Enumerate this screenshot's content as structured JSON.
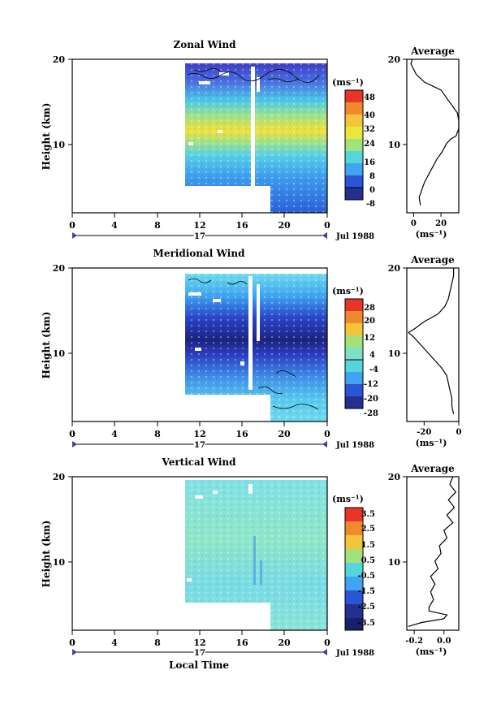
{
  "chart_data": [
    {
      "type": "heatmap",
      "title": "Zonal Wind",
      "ylabel": "Height (km)",
      "ylim": [
        0,
        20
      ],
      "yticks": [
        10,
        20
      ],
      "xticks": [
        "0",
        "4",
        "8",
        "12",
        "16",
        "20",
        "0"
      ],
      "date_marker": "17",
      "date_label": "Jul 1988",
      "colorbar": {
        "unit": "(ms⁻¹)",
        "ticks": [
          -8,
          0,
          8,
          16,
          24,
          32,
          40,
          48
        ]
      },
      "average_profile": {
        "title": "Average",
        "xlabel": "(ms⁻¹)",
        "xticks": [
          0,
          20
        ],
        "xlim": [
          -5,
          33
        ],
        "ylim": [
          0,
          20
        ],
        "yticks": [
          10,
          20
        ],
        "points": [
          [
            5,
            1
          ],
          [
            4,
            2
          ],
          [
            6,
            3
          ],
          [
            8,
            4
          ],
          [
            11,
            5
          ],
          [
            14,
            6
          ],
          [
            17,
            7
          ],
          [
            21,
            8
          ],
          [
            24,
            9
          ],
          [
            27,
            9.6
          ],
          [
            31,
            10
          ],
          [
            33,
            11
          ],
          [
            33,
            12
          ],
          [
            32,
            13
          ],
          [
            28,
            14
          ],
          [
            24,
            15
          ],
          [
            20,
            16
          ],
          [
            14,
            16.5
          ],
          [
            8,
            17
          ],
          [
            2,
            18
          ],
          [
            0,
            18.7
          ],
          [
            -2,
            19.4
          ],
          [
            -1,
            20
          ]
        ]
      }
    },
    {
      "type": "heatmap",
      "title": "Meridional Wind",
      "ylabel": "Height (km)",
      "ylim": [
        0,
        20
      ],
      "yticks": [
        10,
        20
      ],
      "xticks": [
        "0",
        "4",
        "8",
        "12",
        "16",
        "20",
        "0"
      ],
      "date_marker": "17",
      "date_label": "Jul 1988",
      "colorbar": {
        "unit": "(ms⁻¹)",
        "ticks": [
          -28,
          -20,
          -12,
          -4,
          4,
          12,
          20,
          28
        ]
      },
      "average_profile": {
        "title": "Average",
        "xlabel": "(ms⁻¹)",
        "xticks": [
          -20,
          0
        ],
        "xlim": [
          -30,
          0
        ],
        "ylim": [
          0,
          20
        ],
        "yticks": [
          10,
          20
        ],
        "points": [
          [
            -3,
            1
          ],
          [
            -4,
            2
          ],
          [
            -4,
            3
          ],
          [
            -5,
            4
          ],
          [
            -6,
            5
          ],
          [
            -7,
            6
          ],
          [
            -10,
            7
          ],
          [
            -14,
            8
          ],
          [
            -18,
            9
          ],
          [
            -22,
            10
          ],
          [
            -26,
            11
          ],
          [
            -29,
            11.6
          ],
          [
            -26,
            12
          ],
          [
            -20,
            13
          ],
          [
            -12,
            14
          ],
          [
            -8,
            15
          ],
          [
            -6,
            16
          ],
          [
            -5,
            17
          ],
          [
            -4,
            18
          ],
          [
            -3,
            19
          ],
          [
            -3,
            20
          ]
        ]
      }
    },
    {
      "type": "heatmap",
      "title": "Vertical Wind",
      "ylabel": "Height (km)",
      "ylim": [
        0,
        20
      ],
      "yticks": [
        10,
        20
      ],
      "xticks": [
        "0",
        "4",
        "8",
        "12",
        "16",
        "20",
        "0"
      ],
      "date_marker": "17",
      "date_label": "Jul 1988",
      "xlabel": "Local Time",
      "colorbar": {
        "unit": "(ms⁻¹)",
        "ticks": [
          -3.5,
          -2.5,
          -1.5,
          -0.5,
          0.5,
          1.5,
          2.5,
          3.5
        ]
      },
      "average_profile": {
        "title": "Average",
        "xlabel": "(ms⁻¹)",
        "xticks": [
          -0.2,
          0.0
        ],
        "xlim": [
          -0.25,
          0.1
        ],
        "ylim": [
          0,
          20
        ],
        "yticks": [
          10,
          20
        ],
        "points": [
          [
            -0.24,
            0.5
          ],
          [
            -0.15,
            1
          ],
          [
            0.0,
            1.5
          ],
          [
            0.02,
            2
          ],
          [
            -0.1,
            2.5
          ],
          [
            -0.1,
            3
          ],
          [
            -0.07,
            4
          ],
          [
            -0.09,
            5
          ],
          [
            -0.06,
            6
          ],
          [
            -0.09,
            7
          ],
          [
            -0.04,
            8
          ],
          [
            -0.06,
            9
          ],
          [
            -0.02,
            10
          ],
          [
            -0.03,
            11
          ],
          [
            0.02,
            12
          ],
          [
            0.0,
            13
          ],
          [
            0.06,
            14
          ],
          [
            0.02,
            15
          ],
          [
            0.07,
            16
          ],
          [
            0.03,
            17
          ],
          [
            0.08,
            18
          ],
          [
            0.04,
            19
          ],
          [
            0.06,
            20
          ]
        ]
      }
    }
  ]
}
